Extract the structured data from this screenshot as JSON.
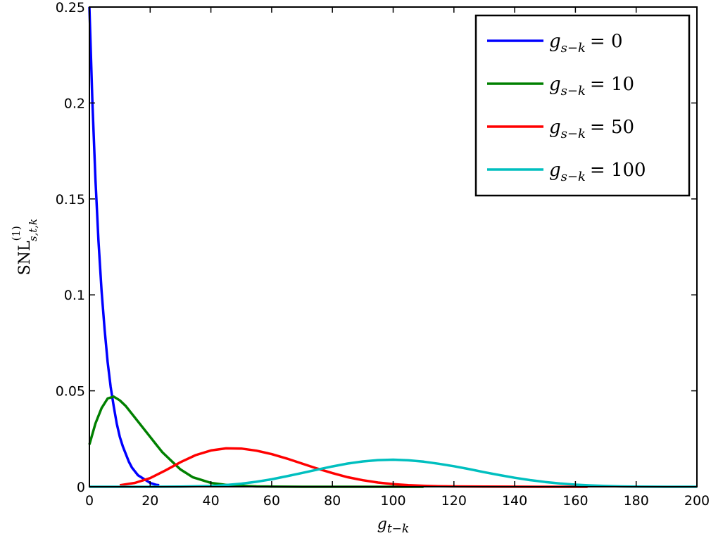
{
  "chart_data": {
    "type": "line",
    "xlabel": "g_{t-k}",
    "ylabel": "SNL^{(1)}_{s,t,k}",
    "xlim": [
      0,
      200
    ],
    "ylim": [
      0,
      0.25
    ],
    "x_ticks": [
      0,
      20,
      40,
      60,
      80,
      100,
      120,
      140,
      160,
      180,
      200
    ],
    "y_ticks": [
      0,
      0.05,
      0.1,
      0.15,
      0.2,
      0.25
    ],
    "x_tick_labels": [
      "0",
      "20",
      "40",
      "60",
      "80",
      "100",
      "120",
      "140",
      "160",
      "180",
      "200"
    ],
    "y_tick_labels": [
      "0",
      "0.05",
      "0.1",
      "0.15",
      "0.2",
      "0.25"
    ],
    "grid": false,
    "legend_position": "top-right",
    "series": [
      {
        "name": "g_{s-k} = 0",
        "legend_var": "g",
        "legend_sub": "s−k",
        "legend_eq": "= 0",
        "color": "#0000ff",
        "x": [
          0,
          1,
          2,
          3,
          4,
          5,
          6,
          7,
          8,
          9,
          10,
          11,
          12,
          13,
          14,
          15,
          16,
          17,
          18,
          19,
          20,
          21,
          22,
          23
        ],
        "y": [
          0.25,
          0.2,
          0.16,
          0.128,
          0.102,
          0.082,
          0.065,
          0.052,
          0.042,
          0.033,
          0.026,
          0.021,
          0.017,
          0.013,
          0.01,
          0.008,
          0.006,
          0.005,
          0.004,
          0.003,
          0.002,
          0.0015,
          0.001,
          0.0008
        ]
      },
      {
        "name": "g_{s-k} = 10",
        "legend_var": "g",
        "legend_sub": "s−k",
        "legend_eq": "= 10",
        "color": "#008000",
        "x": [
          0,
          2,
          4,
          6,
          8,
          10,
          12,
          14,
          16,
          18,
          20,
          22,
          24,
          26,
          28,
          30,
          32,
          34,
          36,
          38,
          40,
          45,
          50,
          55,
          60,
          70,
          80,
          90,
          100,
          110
        ],
        "y": [
          0.022,
          0.033,
          0.041,
          0.046,
          0.047,
          0.045,
          0.042,
          0.038,
          0.034,
          0.03,
          0.026,
          0.022,
          0.018,
          0.015,
          0.012,
          0.009,
          0.007,
          0.005,
          0.004,
          0.003,
          0.002,
          0.001,
          0.0005,
          0.0002,
          0.0001,
          0,
          0,
          0,
          0,
          0
        ]
      },
      {
        "name": "g_{s-k} = 50",
        "legend_var": "g",
        "legend_sub": "s−k",
        "legend_eq": "= 50",
        "color": "#ff0000",
        "x": [
          10,
          15,
          20,
          25,
          30,
          35,
          40,
          45,
          50,
          55,
          60,
          65,
          70,
          75,
          80,
          85,
          90,
          95,
          100,
          105,
          110,
          115,
          120,
          130,
          140,
          150,
          160,
          164
        ],
        "y": [
          0.0008,
          0.002,
          0.0045,
          0.0085,
          0.0128,
          0.0165,
          0.0189,
          0.02,
          0.0199,
          0.0188,
          0.017,
          0.0147,
          0.0121,
          0.0095,
          0.0071,
          0.005,
          0.0034,
          0.0022,
          0.0014,
          0.0008,
          0.0005,
          0.0003,
          0.0002,
          8e-05,
          3e-05,
          1e-05,
          0,
          0
        ]
      },
      {
        "name": "g_{s-k} = 100",
        "legend_var": "g",
        "legend_sub": "s−k",
        "legend_eq": "= 100",
        "color": "#00bfbf",
        "x": [
          0,
          20,
          30,
          40,
          45,
          50,
          55,
          60,
          65,
          70,
          75,
          80,
          85,
          90,
          95,
          100,
          105,
          110,
          115,
          120,
          125,
          130,
          135,
          140,
          145,
          150,
          155,
          160,
          165,
          170,
          175,
          180,
          190,
          200
        ],
        "y": [
          0,
          0,
          0.0001,
          0.0004,
          0.0009,
          0.0016,
          0.0026,
          0.0039,
          0.0055,
          0.0072,
          0.0089,
          0.0106,
          0.0121,
          0.0132,
          0.0139,
          0.0141,
          0.0138,
          0.0131,
          0.012,
          0.0107,
          0.0092,
          0.0076,
          0.0061,
          0.0047,
          0.0035,
          0.0025,
          0.0017,
          0.0011,
          0.0007,
          0.0004,
          0.0002,
          0.0001,
          0,
          0
        ]
      }
    ]
  }
}
